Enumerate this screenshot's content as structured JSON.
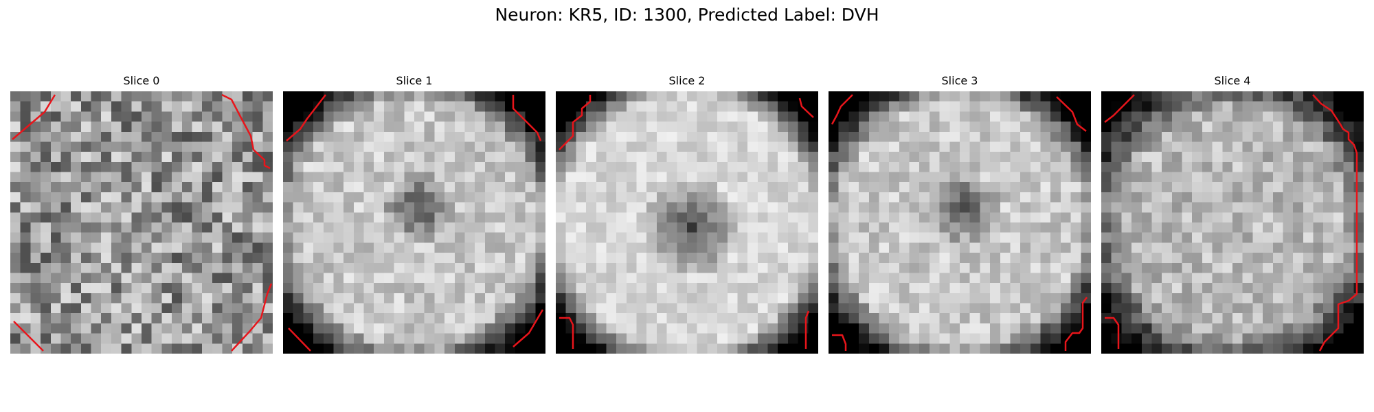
{
  "title": "Neuron: KR5, ID: 1300, Predicted Label: DVH",
  "slices": [
    {
      "title": "Slice 0",
      "profile": "noise",
      "seed": 11
    },
    {
      "title": "Slice 1",
      "profile": "spot-small",
      "seed": 23
    },
    {
      "title": "Slice 2",
      "profile": "spot-large",
      "seed": 37
    },
    {
      "title": "Slice 3",
      "profile": "spot-small",
      "seed": 41
    },
    {
      "title": "Slice 4",
      "profile": "ring",
      "seed": 59
    }
  ],
  "colors": {
    "contour": "#e8151b",
    "background": "#ffffff"
  },
  "colormap": "gray"
}
